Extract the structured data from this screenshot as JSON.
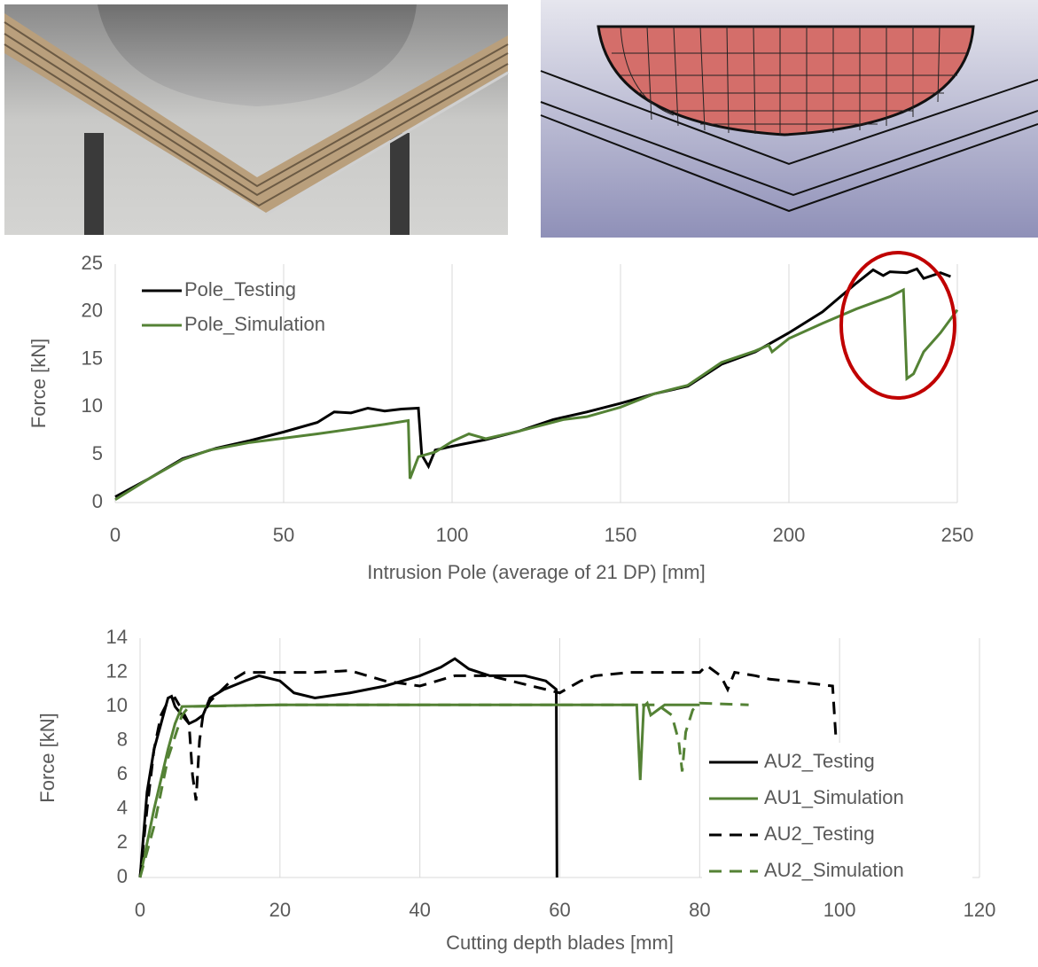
{
  "chart_data": [
    {
      "type": "line",
      "xlabel": "Intrusion Pole (average of 21 DP) [mm]",
      "ylabel": "Force [kN]",
      "xlim": [
        0,
        250
      ],
      "ylim": [
        0,
        25
      ],
      "xticks": [
        0,
        50,
        100,
        150,
        200,
        250
      ],
      "yticks": [
        0,
        5,
        10,
        15,
        20,
        25
      ],
      "grid": "x",
      "legend": "upper left",
      "series": [
        {
          "name": "Pole_Testing",
          "color": "#000000",
          "dash": false,
          "x": [
            0,
            10,
            20,
            30,
            40,
            50,
            60,
            65,
            70,
            75,
            80,
            85,
            90,
            91,
            93,
            95,
            100,
            110,
            120,
            130,
            140,
            150,
            160,
            170,
            180,
            190,
            200,
            210,
            220,
            225,
            228,
            230,
            235,
            238,
            240,
            245,
            248
          ],
          "values": [
            0.6,
            2.5,
            4.6,
            5.7,
            6.5,
            7.4,
            8.4,
            9.5,
            9.4,
            9.9,
            9.6,
            9.8,
            9.9,
            5,
            3.8,
            5.5,
            5.9,
            6.6,
            7.5,
            8.7,
            9.5,
            10.4,
            11.4,
            12.2,
            14.5,
            15.8,
            17.8,
            20,
            23,
            24.4,
            23.8,
            24.2,
            24.1,
            24.5,
            23.5,
            24.1,
            23.7
          ]
        },
        {
          "name": "Pole_Simulation",
          "color": "#548235",
          "dash": false,
          "x": [
            0,
            10,
            20,
            28,
            40,
            60,
            80,
            87,
            87.5,
            90,
            95,
            100,
            105,
            110,
            120,
            133,
            140,
            150,
            160,
            170,
            180,
            190,
            194,
            195,
            200,
            210,
            220,
            230,
            234,
            235,
            237,
            240,
            245,
            250
          ],
          "values": [
            0.3,
            2.5,
            4.5,
            5.5,
            6.3,
            7.2,
            8.2,
            8.6,
            2.5,
            4.8,
            5.3,
            6.4,
            7.2,
            6.7,
            7.5,
            8.7,
            9,
            10,
            11.4,
            12.3,
            14.7,
            15.9,
            16.5,
            15.8,
            17.2,
            18.8,
            20.3,
            21.6,
            22.3,
            13,
            13.5,
            15.8,
            17.8,
            20.2
          ]
        }
      ]
    },
    {
      "type": "line",
      "xlabel": "Cutting depth blades [mm]",
      "ylabel": "Force [kN]",
      "xlim": [
        0,
        120
      ],
      "ylim": [
        0,
        14
      ],
      "xticks": [
        0,
        20,
        40,
        60,
        80,
        100,
        120
      ],
      "yticks": [
        0,
        2,
        4,
        6,
        8,
        10,
        12,
        14
      ],
      "grid": "x",
      "legend": "lower right",
      "series": [
        {
          "name": "AU2_Testing",
          "color": "#000000",
          "dash": false,
          "x": [
            0,
            1,
            2,
            3,
            4,
            4.5,
            5,
            6,
            7,
            8,
            9,
            10,
            12,
            15,
            17,
            20,
            22,
            25,
            30,
            35,
            40,
            43,
            45,
            47,
            50,
            55,
            58,
            59.5,
            59.6
          ],
          "values": [
            0,
            5,
            7.5,
            9,
            10.5,
            10.6,
            10,
            9.5,
            9,
            9.2,
            9.5,
            10.5,
            11,
            11.5,
            11.8,
            11.5,
            10.8,
            10.5,
            10.8,
            11.2,
            11.8,
            12.3,
            12.8,
            12.2,
            11.8,
            11.8,
            11.5,
            11,
            0
          ]
        },
        {
          "name": "AU1_Simulation",
          "color": "#548235",
          "dash": false,
          "x": [
            0,
            2,
            4,
            5,
            6,
            20,
            40,
            60,
            71,
            71.5,
            72,
            72.5,
            73,
            74,
            75,
            80
          ],
          "values": [
            0,
            4,
            7.5,
            9,
            10,
            10.1,
            10.1,
            10.1,
            10.1,
            5.7,
            10,
            10.2,
            9.5,
            9.8,
            10.1,
            10.1
          ]
        },
        {
          "name": "AU2_Testing",
          "color": "#000000",
          "dash": true,
          "x": [
            0,
            1,
            2,
            3,
            4,
            5,
            6,
            7,
            7.5,
            8,
            8.5,
            9,
            10,
            13,
            15,
            20,
            25,
            30,
            35,
            40,
            45,
            50,
            55,
            60,
            63,
            65,
            70,
            75,
            80,
            81,
            83,
            84,
            85,
            88,
            90,
            95,
            99,
            99.5
          ],
          "values": [
            0,
            4,
            7.5,
            9.5,
            10.3,
            10.5,
            9.8,
            9,
            6,
            4.5,
            8,
            9.5,
            10.3,
            11.5,
            12,
            12,
            12,
            12.1,
            11.5,
            11.2,
            11.8,
            11.8,
            11.3,
            10.8,
            11.5,
            11.8,
            12,
            12,
            12,
            12.4,
            11.8,
            11,
            12,
            11.8,
            11.6,
            11.4,
            11.2,
            8
          ]
        },
        {
          "name": "AU2_Simulation",
          "color": "#548235",
          "dash": true,
          "x": [
            0,
            2,
            4,
            6,
            7,
            20,
            40,
            60,
            74,
            76,
            77,
            77.5,
            78,
            79,
            80,
            87
          ],
          "values": [
            0,
            3,
            7,
            9.5,
            10,
            10.1,
            10.1,
            10.1,
            10.1,
            9.5,
            8,
            6.2,
            8.5,
            9.8,
            10.2,
            10.1
          ]
        }
      ]
    }
  ]
}
